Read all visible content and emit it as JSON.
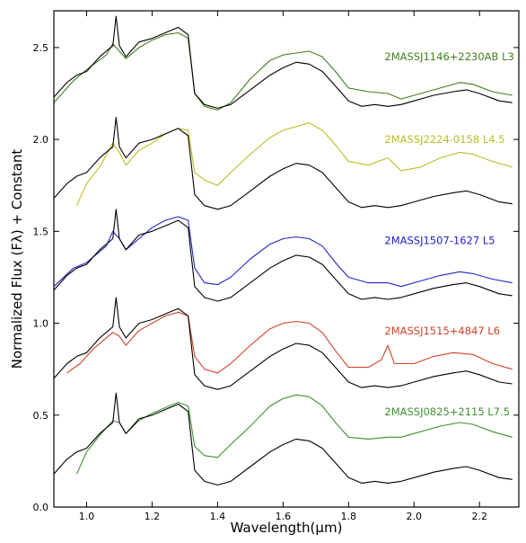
{
  "chart_data": {
    "type": "line",
    "title": "",
    "xlabel": "Wavelength(μm)",
    "ylabel": "Normalized Flux (Fλ) + Constant",
    "xlim": [
      0.9,
      2.32
    ],
    "ylim": [
      0.0,
      2.7
    ],
    "xticks": [
      1.0,
      1.2,
      1.4,
      1.6,
      1.8,
      2.0,
      2.2
    ],
    "xtick_labels": [
      "1.0",
      "1.2",
      "1.4",
      "1.6",
      "1.8",
      "2.0",
      "2.2"
    ],
    "yticks": [
      0.0,
      0.5,
      1.0,
      1.5,
      2.0,
      2.5
    ],
    "ytick_labels": [
      "0.0",
      "0.5",
      "1.0",
      "1.5",
      "2.0",
      "2.5"
    ],
    "grid": false,
    "legend": "none",
    "series": [
      {
        "name": "2MASSJ1146+2230AB L3",
        "color": "#3f7f1f",
        "points": [
          [
            0.9,
            2.2
          ],
          [
            0.96,
            2.32
          ],
          [
            1.0,
            2.38
          ],
          [
            1.06,
            2.46
          ],
          [
            1.08,
            2.52
          ],
          [
            1.1,
            2.48
          ],
          [
            1.12,
            2.44
          ],
          [
            1.16,
            2.5
          ],
          [
            1.2,
            2.54
          ],
          [
            1.24,
            2.57
          ],
          [
            1.28,
            2.58
          ],
          [
            1.31,
            2.55
          ],
          [
            1.33,
            2.25
          ],
          [
            1.36,
            2.18
          ],
          [
            1.4,
            2.16
          ],
          [
            1.44,
            2.2
          ],
          [
            1.5,
            2.33
          ],
          [
            1.56,
            2.43
          ],
          [
            1.6,
            2.46
          ],
          [
            1.64,
            2.47
          ],
          [
            1.68,
            2.48
          ],
          [
            1.72,
            2.45
          ],
          [
            1.76,
            2.37
          ],
          [
            1.8,
            2.28
          ],
          [
            1.86,
            2.26
          ],
          [
            1.92,
            2.25
          ],
          [
            1.96,
            2.22
          ],
          [
            2.02,
            2.25
          ],
          [
            2.08,
            2.28
          ],
          [
            2.14,
            2.31
          ],
          [
            2.18,
            2.3
          ],
          [
            2.24,
            2.26
          ],
          [
            2.3,
            2.24
          ]
        ]
      },
      {
        "name": "2MASSJ2224-0158 L4.5",
        "color": "#bcbd22",
        "points": [
          [
            0.97,
            1.64
          ],
          [
            1.0,
            1.76
          ],
          [
            1.04,
            1.85
          ],
          [
            1.08,
            1.98
          ],
          [
            1.1,
            1.93
          ],
          [
            1.12,
            1.86
          ],
          [
            1.16,
            1.94
          ],
          [
            1.2,
            1.98
          ],
          [
            1.24,
            2.03
          ],
          [
            1.28,
            2.06
          ],
          [
            1.31,
            2.05
          ],
          [
            1.33,
            1.82
          ],
          [
            1.36,
            1.78
          ],
          [
            1.4,
            1.75
          ],
          [
            1.44,
            1.82
          ],
          [
            1.5,
            1.92
          ],
          [
            1.56,
            2.01
          ],
          [
            1.6,
            2.05
          ],
          [
            1.64,
            2.07
          ],
          [
            1.68,
            2.09
          ],
          [
            1.72,
            2.05
          ],
          [
            1.76,
            1.97
          ],
          [
            1.8,
            1.88
          ],
          [
            1.86,
            1.86
          ],
          [
            1.92,
            1.9
          ],
          [
            1.96,
            1.83
          ],
          [
            2.02,
            1.85
          ],
          [
            2.08,
            1.9
          ],
          [
            2.14,
            1.93
          ],
          [
            2.18,
            1.92
          ],
          [
            2.24,
            1.88
          ],
          [
            2.3,
            1.85
          ]
        ]
      },
      {
        "name": "2MASSJ1507-1627 L5",
        "color": "#2222cc",
        "points": [
          [
            0.9,
            1.2
          ],
          [
            0.96,
            1.3
          ],
          [
            1.0,
            1.33
          ],
          [
            1.06,
            1.42
          ],
          [
            1.08,
            1.5
          ],
          [
            1.1,
            1.46
          ],
          [
            1.12,
            1.4
          ],
          [
            1.16,
            1.46
          ],
          [
            1.2,
            1.52
          ],
          [
            1.24,
            1.56
          ],
          [
            1.28,
            1.58
          ],
          [
            1.31,
            1.56
          ],
          [
            1.33,
            1.3
          ],
          [
            1.36,
            1.22
          ],
          [
            1.4,
            1.21
          ],
          [
            1.44,
            1.25
          ],
          [
            1.5,
            1.35
          ],
          [
            1.56,
            1.43
          ],
          [
            1.6,
            1.46
          ],
          [
            1.64,
            1.47
          ],
          [
            1.68,
            1.46
          ],
          [
            1.72,
            1.42
          ],
          [
            1.76,
            1.33
          ],
          [
            1.8,
            1.25
          ],
          [
            1.86,
            1.22
          ],
          [
            1.92,
            1.22
          ],
          [
            1.96,
            1.2
          ],
          [
            2.02,
            1.23
          ],
          [
            2.08,
            1.26
          ],
          [
            2.14,
            1.28
          ],
          [
            2.18,
            1.27
          ],
          [
            2.24,
            1.24
          ],
          [
            2.3,
            1.22
          ]
        ]
      },
      {
        "name": "2MASSJ1515+4847 L6",
        "color": "#d04428",
        "points": [
          [
            0.94,
            0.73
          ],
          [
            0.98,
            0.78
          ],
          [
            1.02,
            0.86
          ],
          [
            1.06,
            0.92
          ],
          [
            1.08,
            0.95
          ],
          [
            1.1,
            0.93
          ],
          [
            1.12,
            0.88
          ],
          [
            1.16,
            0.96
          ],
          [
            1.2,
            1.0
          ],
          [
            1.24,
            1.04
          ],
          [
            1.28,
            1.06
          ],
          [
            1.31,
            1.04
          ],
          [
            1.33,
            0.82
          ],
          [
            1.36,
            0.75
          ],
          [
            1.4,
            0.73
          ],
          [
            1.44,
            0.78
          ],
          [
            1.5,
            0.88
          ],
          [
            1.56,
            0.97
          ],
          [
            1.6,
            1.0
          ],
          [
            1.64,
            1.01
          ],
          [
            1.68,
            1.0
          ],
          [
            1.72,
            0.95
          ],
          [
            1.76,
            0.85
          ],
          [
            1.8,
            0.76
          ],
          [
            1.86,
            0.76
          ],
          [
            1.9,
            0.8
          ],
          [
            1.92,
            0.88
          ],
          [
            1.94,
            0.78
          ],
          [
            2.0,
            0.78
          ],
          [
            2.06,
            0.82
          ],
          [
            2.12,
            0.84
          ],
          [
            2.18,
            0.83
          ],
          [
            2.24,
            0.78
          ],
          [
            2.3,
            0.75
          ]
        ]
      },
      {
        "name": "2MASSJ0825+2115 L7.5",
        "color": "#3f8f2f",
        "points": [
          [
            0.97,
            0.18
          ],
          [
            1.0,
            0.3
          ],
          [
            1.04,
            0.39
          ],
          [
            1.08,
            0.47
          ],
          [
            1.1,
            0.46
          ],
          [
            1.12,
            0.4
          ],
          [
            1.16,
            0.47
          ],
          [
            1.2,
            0.51
          ],
          [
            1.24,
            0.54
          ],
          [
            1.28,
            0.57
          ],
          [
            1.31,
            0.55
          ],
          [
            1.33,
            0.33
          ],
          [
            1.36,
            0.28
          ],
          [
            1.4,
            0.27
          ],
          [
            1.44,
            0.34
          ],
          [
            1.5,
            0.44
          ],
          [
            1.56,
            0.55
          ],
          [
            1.6,
            0.59
          ],
          [
            1.64,
            0.61
          ],
          [
            1.68,
            0.6
          ],
          [
            1.72,
            0.55
          ],
          [
            1.76,
            0.46
          ],
          [
            1.8,
            0.38
          ],
          [
            1.86,
            0.37
          ],
          [
            1.92,
            0.38
          ],
          [
            1.96,
            0.38
          ],
          [
            2.02,
            0.41
          ],
          [
            2.08,
            0.44
          ],
          [
            2.14,
            0.46
          ],
          [
            2.18,
            0.45
          ],
          [
            2.24,
            0.41
          ],
          [
            2.3,
            0.38
          ]
        ]
      },
      {
        "name": "",
        "color": "#000000",
        "offsets": [
          2.05,
          1.5,
          1.0,
          0.52,
          0.0
        ],
        "points": [
          [
            0.9,
            0.18
          ],
          [
            0.94,
            0.26
          ],
          [
            0.97,
            0.3
          ],
          [
            1.0,
            0.32
          ],
          [
            1.04,
            0.4
          ],
          [
            1.08,
            0.46
          ],
          [
            1.09,
            0.62
          ],
          [
            1.1,
            0.46
          ],
          [
            1.12,
            0.4
          ],
          [
            1.16,
            0.48
          ],
          [
            1.2,
            0.5
          ],
          [
            1.24,
            0.53
          ],
          [
            1.28,
            0.56
          ],
          [
            1.31,
            0.52
          ],
          [
            1.33,
            0.2
          ],
          [
            1.36,
            0.14
          ],
          [
            1.4,
            0.12
          ],
          [
            1.44,
            0.14
          ],
          [
            1.5,
            0.22
          ],
          [
            1.56,
            0.3
          ],
          [
            1.6,
            0.34
          ],
          [
            1.64,
            0.37
          ],
          [
            1.68,
            0.36
          ],
          [
            1.72,
            0.32
          ],
          [
            1.76,
            0.24
          ],
          [
            1.8,
            0.16
          ],
          [
            1.84,
            0.13
          ],
          [
            1.88,
            0.14
          ],
          [
            1.92,
            0.13
          ],
          [
            1.96,
            0.14
          ],
          [
            2.0,
            0.16
          ],
          [
            2.06,
            0.19
          ],
          [
            2.12,
            0.21
          ],
          [
            2.16,
            0.22
          ],
          [
            2.2,
            0.2
          ],
          [
            2.26,
            0.16
          ],
          [
            2.3,
            0.15
          ]
        ]
      }
    ],
    "labels": [
      {
        "text": "2MASSJ1146+2230AB L3",
        "color": "#3f7f1f",
        "x": 1.91,
        "y": 2.43
      },
      {
        "text": "2MASSJ2224-0158 L4.5",
        "color": "#bcbd22",
        "x": 1.91,
        "y": 1.98
      },
      {
        "text": "2MASSJ1507-1627 L5",
        "color": "#2222cc",
        "x": 1.91,
        "y": 1.43
      },
      {
        "text": "2MASSJ1515+4847 L6",
        "color": "#d04428",
        "x": 1.91,
        "y": 0.94
      },
      {
        "text": "2MASSJ0825+2115 L7.5",
        "color": "#3f8f2f",
        "x": 1.91,
        "y": 0.5
      }
    ]
  }
}
